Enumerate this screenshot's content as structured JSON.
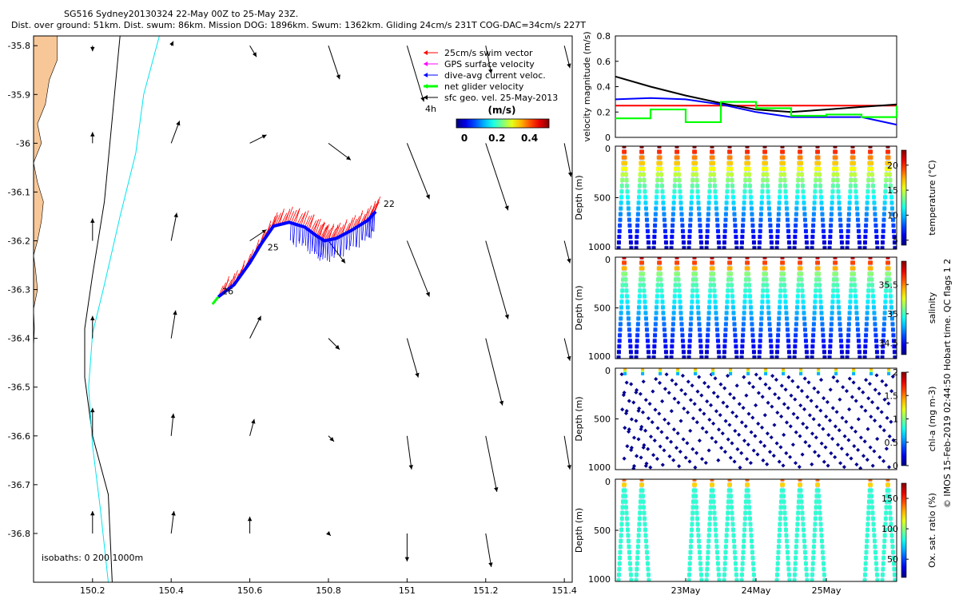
{
  "header": {
    "title": "SG516 Sydney20130324 22-May 00Z to 25-May 23Z.",
    "subtitle": "Dist. over ground: 51km. Dist. swum: 86km. Mission DOG: 1896km. Swum: 1362km. Gliding 24cm/s 231T COG-DAC=34cm/s 227T"
  },
  "side_label": "© IMOS 15-Feb-2019 02:44:50 Hobart time. QC flags 1  2",
  "chart_data": [
    {
      "type": "scatter",
      "id": "map",
      "xlim": [
        150.05,
        151.42
      ],
      "ylim": [
        -36.9,
        -35.78
      ],
      "x_ticks": [
        150.2,
        150.4,
        150.6,
        150.8,
        151,
        151.2,
        151.4
      ],
      "x_tick_labels": [
        "150.2",
        "150.4",
        "150.6",
        "150.8",
        "151",
        "151.2",
        "151.4"
      ],
      "y_ticks": [
        -35.8,
        -35.9,
        -36,
        -36.1,
        -36.2,
        -36.3,
        -36.4,
        -36.5,
        -36.6,
        -36.7,
        -36.8
      ],
      "y_tick_labels": [
        "-35.8",
        "-35.9",
        "-36",
        "-36.1",
        "-36.2",
        "-36.3",
        "-36.4",
        "-36.5",
        "-36.6",
        "-36.7",
        "-36.8"
      ],
      "isobaths_label": "isobaths: 0   200  1000m",
      "legend": [
        {
          "label": "25cm/s swim vector",
          "color": "#ff0000"
        },
        {
          "label": "GPS surface velocity",
          "color": "#ff00ff"
        },
        {
          "label": "dive-avg current veloc.",
          "color": "#0000ff"
        },
        {
          "label": "net glider velocity",
          "color": "#00ff00"
        },
        {
          "label": "sfc geo. vel. 25-May-2013",
          "color": "#000000"
        }
      ],
      "legend_note": "4h",
      "colorbar": {
        "title": "(m/s)",
        "ticks": [
          "0",
          "0.2",
          "0.4"
        ],
        "range": [
          0,
          0.5
        ]
      },
      "track_labels": [
        {
          "label": "22",
          "lon": 150.94,
          "lat": -36.13
        },
        {
          "label": "25",
          "lon": 150.645,
          "lat": -36.22
        },
        {
          "label": "26",
          "lon": 150.53,
          "lat": -36.31
        }
      ],
      "track": [
        [
          150.52,
          -36.315
        ],
        [
          150.56,
          -36.29
        ],
        [
          150.6,
          -36.245
        ],
        [
          150.63,
          -36.205
        ],
        [
          150.66,
          -36.17
        ],
        [
          150.7,
          -36.162
        ],
        [
          150.74,
          -36.172
        ],
        [
          150.77,
          -36.19
        ],
        [
          150.79,
          -36.2
        ],
        [
          150.82,
          -36.195
        ],
        [
          150.86,
          -36.178
        ],
        [
          150.9,
          -36.158
        ],
        [
          150.92,
          -36.14
        ]
      ],
      "isobath_200": [
        [
          150.27,
          -35.78
        ],
        [
          150.25,
          -35.95
        ],
        [
          150.23,
          -36.12
        ],
        [
          150.2,
          -36.27
        ],
        [
          150.18,
          -36.38
        ],
        [
          150.18,
          -36.48
        ],
        [
          150.2,
          -36.6
        ],
        [
          150.24,
          -36.72
        ],
        [
          150.25,
          -36.9
        ]
      ],
      "isobath_1000": [
        [
          150.37,
          -35.78
        ],
        [
          150.33,
          -35.9
        ],
        [
          150.31,
          -36.02
        ],
        [
          150.27,
          -36.15
        ],
        [
          150.23,
          -36.29
        ],
        [
          150.2,
          -36.39
        ],
        [
          150.19,
          -36.5
        ],
        [
          150.2,
          -36.62
        ],
        [
          150.22,
          -36.75
        ],
        [
          150.24,
          -36.9
        ]
      ],
      "geo_vectors": [
        [
          150.2,
          -35.8,
          0,
          -0.01
        ],
        [
          150.4,
          -35.8,
          0.004,
          0.008
        ],
        [
          150.6,
          -35.8,
          0.012,
          -0.02
        ],
        [
          150.8,
          -35.8,
          0.02,
          -0.06
        ],
        [
          151.0,
          -35.8,
          0.03,
          -0.1
        ],
        [
          151.2,
          -35.8,
          0.01,
          -0.05
        ],
        [
          151.4,
          -35.8,
          0.01,
          -0.04
        ],
        [
          150.2,
          -36.0,
          0,
          0.02
        ],
        [
          150.4,
          -36.0,
          0.015,
          0.04
        ],
        [
          150.6,
          -36.0,
          0.03,
          0.015
        ],
        [
          150.8,
          -36.0,
          0.04,
          -0.03
        ],
        [
          151.0,
          -36.0,
          0.04,
          -0.1
        ],
        [
          151.2,
          -36.0,
          0.04,
          -0.12
        ],
        [
          151.4,
          -36.0,
          0.012,
          -0.06
        ],
        [
          150.2,
          -36.2,
          0,
          0.04
        ],
        [
          150.4,
          -36.2,
          0.01,
          0.05
        ],
        [
          150.6,
          -36.2,
          0.03,
          0.02
        ],
        [
          150.8,
          -36.2,
          0.03,
          -0.04
        ],
        [
          151.0,
          -36.2,
          0.04,
          -0.1
        ],
        [
          151.2,
          -36.2,
          0.04,
          -0.14
        ],
        [
          151.4,
          -36.2,
          0.01,
          -0.04
        ],
        [
          150.2,
          -36.4,
          0,
          0.04
        ],
        [
          150.4,
          -36.4,
          0.008,
          0.05
        ],
        [
          150.6,
          -36.4,
          0.02,
          0.04
        ],
        [
          150.8,
          -36.4,
          0.02,
          -0.02
        ],
        [
          151.0,
          -36.4,
          0.02,
          -0.07
        ],
        [
          151.2,
          -36.4,
          0.03,
          -0.12
        ],
        [
          151.4,
          -36.4,
          0.01,
          -0.04
        ],
        [
          150.2,
          -36.6,
          0,
          0.05
        ],
        [
          150.4,
          -36.6,
          0.004,
          0.04
        ],
        [
          150.6,
          -36.6,
          0.008,
          0.03
        ],
        [
          150.8,
          -36.6,
          0.01,
          -0.01
        ],
        [
          151.0,
          -36.6,
          0.008,
          -0.06
        ],
        [
          151.2,
          -36.6,
          0.02,
          -0.1
        ],
        [
          151.4,
          -36.6,
          0.01,
          -0.06
        ],
        [
          150.2,
          -36.8,
          0,
          0.04
        ],
        [
          150.4,
          -36.8,
          0.005,
          0.04
        ],
        [
          150.6,
          -36.8,
          0,
          0.03
        ],
        [
          150.8,
          -36.8,
          0.004,
          -0.004
        ],
        [
          151.0,
          -36.8,
          0,
          -0.05
        ],
        [
          151.2,
          -36.8,
          0.01,
          -0.06
        ]
      ]
    },
    {
      "type": "line",
      "id": "velocity",
      "ylabel": "velocity magnitude (m/s)",
      "ylim": [
        0,
        0.8
      ],
      "y_ticks": [
        0,
        0.2,
        0.4,
        0.6,
        0.8
      ],
      "y_tick_labels": [
        "0",
        "0.2",
        "0.4",
        "0.6",
        "0.8"
      ],
      "x": [
        22,
        22.5,
        23,
        23.5,
        24,
        24.5,
        25,
        25.5,
        26
      ],
      "series": [
        {
          "color": "#ff0000",
          "values": [
            0.25,
            0.25,
            0.25,
            0.25,
            0.25,
            0.25,
            0.25,
            0.25,
            0.25
          ]
        },
        {
          "color": "#000000",
          "values": [
            0.48,
            0.4,
            0.33,
            0.27,
            0.22,
            0.2,
            0.22,
            0.24,
            0.26
          ]
        },
        {
          "color": "#0000ff",
          "values": [
            0.3,
            0.31,
            0.3,
            0.26,
            0.2,
            0.16,
            0.16,
            0.16,
            0.1
          ]
        },
        {
          "color": "#00ff00",
          "values": [
            0.15,
            0.22,
            0.12,
            0.28,
            0.23,
            0.17,
            0.18,
            0.16,
            0.25
          ]
        }
      ]
    },
    {
      "type": "scatter",
      "id": "temperature",
      "ylabel": "Depth (m)",
      "cbar_label": "temperature (°C)",
      "ylim": [
        1000,
        0
      ],
      "y_ticks": [
        0,
        500,
        1000
      ],
      "y_tick_labels": [
        "0",
        "500",
        "1000"
      ],
      "cbar_range": [
        4,
        23
      ],
      "cbar_ticks": [
        5,
        10,
        15,
        20
      ],
      "cbar_tick_labels": [
        "5",
        "10",
        "15",
        "20"
      ],
      "dives": 16,
      "max_depth": 1000
    },
    {
      "type": "scatter",
      "id": "salinity",
      "ylabel": "Depth (m)",
      "cbar_label": "salinity",
      "ylim": [
        1000,
        0
      ],
      "y_ticks": [
        0,
        500,
        1000
      ],
      "y_tick_labels": [
        "0",
        "500",
        "1000"
      ],
      "cbar_range": [
        34.3,
        35.9
      ],
      "cbar_ticks": [
        34.5,
        35,
        35.5
      ],
      "cbar_tick_labels": [
        "34.5",
        "35",
        "35.5"
      ],
      "dives": 16,
      "max_depth": 1000
    },
    {
      "type": "scatter",
      "id": "chla",
      "ylabel": "Depth (m)",
      "cbar_label": "chl-a (mg m-3)",
      "ylim": [
        1000,
        0
      ],
      "y_ticks": [
        0,
        500,
        1000
      ],
      "y_tick_labels": [
        "0",
        "500",
        "1000"
      ],
      "cbar_range": [
        0,
        2
      ],
      "cbar_ticks": [
        0,
        0.5,
        1,
        1.5,
        2
      ],
      "cbar_tick_labels": [
        "0",
        "0.5",
        "1",
        "1.5",
        "2"
      ],
      "dives": 16,
      "max_depth": 1000
    },
    {
      "type": "scatter",
      "id": "oxygen",
      "ylabel": "Depth (m)",
      "cbar_label": "Ox. sat. ratio (%)",
      "ylim": [
        1000,
        0
      ],
      "y_ticks": [
        0,
        500,
        1000
      ],
      "y_tick_labels": [
        "0",
        "500",
        "1000"
      ],
      "cbar_range": [
        20,
        175
      ],
      "cbar_ticks": [
        50,
        100,
        150
      ],
      "cbar_tick_labels": [
        "50",
        "100",
        "150"
      ],
      "x_tick_labels": [
        "23May",
        "24May",
        "25May"
      ],
      "x_tick_positions": [
        23,
        24,
        25
      ],
      "x_range": [
        22,
        26
      ],
      "dives": 16,
      "max_depth": 1000
    }
  ]
}
